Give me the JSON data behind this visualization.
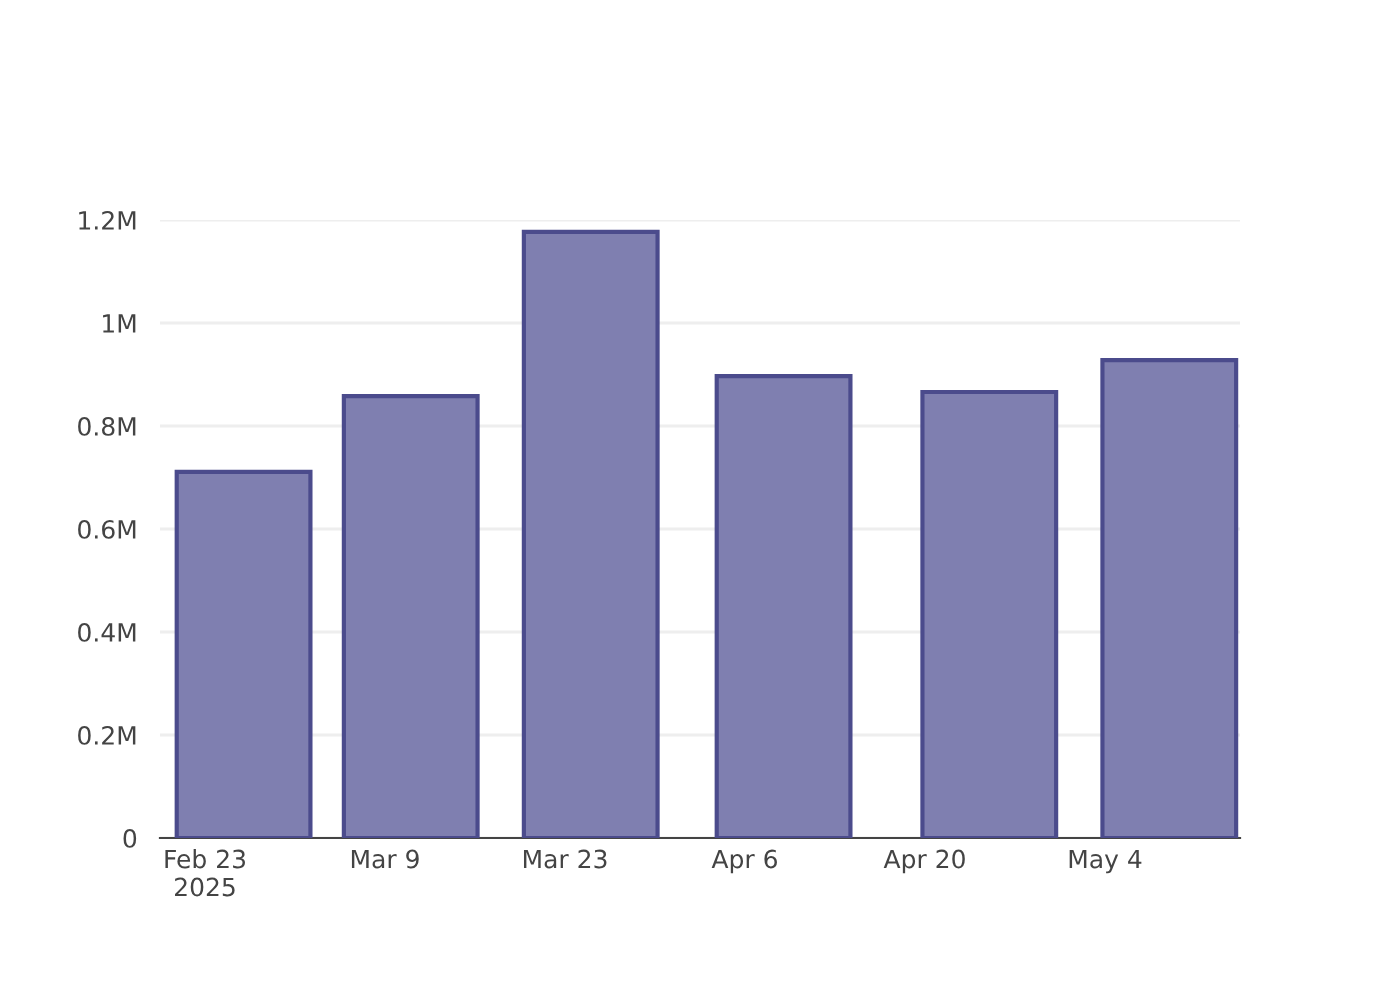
{
  "chart_data": {
    "type": "bar",
    "x": [
      "2025-02-26",
      "2025-03-11",
      "2025-03-25",
      "2025-04-09",
      "2025-04-25",
      "2025-05-09"
    ],
    "series": [
      {
        "color": "#7f7fb0",
        "values": [
          711000,
          858000,
          1177000,
          897000,
          866000,
          928000
        ]
      }
    ],
    "xlim": [
      "2025-02-19T12:00",
      "2025-05-14T12:00"
    ],
    "xticks": [
      {
        "value": "2025-02-23",
        "label": "Feb 23\n2025"
      },
      {
        "value": "2025-03-09",
        "label": "Mar 9"
      },
      {
        "value": "2025-03-23",
        "label": "Mar 23"
      },
      {
        "value": "2025-04-06",
        "label": "Apr 6"
      },
      {
        "value": "2025-04-20",
        "label": "Apr 20"
      },
      {
        "value": "2025-05-04",
        "label": "May 4"
      }
    ],
    "ylim": [
      0,
      1200000
    ],
    "yticks": [
      {
        "value": 0,
        "label": "0"
      },
      {
        "value": 200000,
        "label": "0.2M"
      },
      {
        "value": 400000,
        "label": "0.4M"
      },
      {
        "value": 600000,
        "label": "0.6M"
      },
      {
        "value": 800000,
        "label": "0.8M"
      },
      {
        "value": 1000000,
        "label": "1M"
      },
      {
        "value": 1200000,
        "label": "1.2M"
      }
    ],
    "grid": "y",
    "legend": false
  }
}
